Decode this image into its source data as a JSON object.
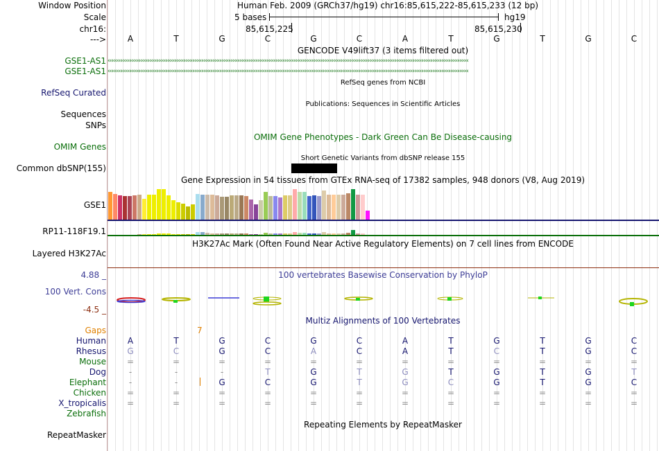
{
  "header": {
    "window_position_label": "Window Position",
    "window_position_value": "Human Feb. 2009 (GRCh37/hg19)   chr16:85,615,222-85,615,233 (12 bp)",
    "scale_label": "Scale",
    "scale_text": "5 bases",
    "scale_assembly": "hg19",
    "chrom_label": "chr16:",
    "pos1": "85,615,225",
    "pos2": "85,615,230",
    "strand_label": "--->"
  },
  "bases": [
    "A",
    "T",
    "G",
    "C",
    "G",
    "C",
    "A",
    "T",
    "G",
    "T",
    "G",
    "C"
  ],
  "tracks": {
    "gencode_title": "GENCODE V49lift37 (3 items filtered out)",
    "gencode_items": [
      "GSE1-AS1",
      "GSE1-AS1"
    ],
    "refseq_label": "RefSeq Curated",
    "refseq_title": "RefSeq genes from NCBI",
    "pubs_label": "Sequences",
    "pubs_title": "Publications: Sequences in Scientific Articles",
    "snps_label": "SNPs",
    "omim_label": "OMIM Genes",
    "omim_title": "OMIM Gene Phenotypes - Dark Green Can Be Disease-causing",
    "dbsnp_label": "Common dbSNP(155)",
    "dbsnp_title": "Short Genetic Variants from dbSNP release 155",
    "gtex_title": "Gene Expression in 54 tissues from GTEx RNA-seq of 17382 samples, 948 donors (V8, Aug 2019)",
    "gtex_gene1": "GSE1",
    "gtex_gene2": "RP11-118F19.1",
    "h3k27_label": "Layered H3K27Ac",
    "h3k27_title": "H3K27Ac Mark (Often Found Near Active Regulatory Elements) on 7 cell lines from ENCODE",
    "cons_label": "100 Vert. Cons",
    "cons_max": "4.88 _",
    "cons_min": "-4.5 _",
    "cons_title": "100 vertebrates Basewise Conservation by PhyloP",
    "multiz_title": "Multiz Alignments of 100 Vertebrates",
    "gaps_label": "Gaps",
    "gaps_value": "7",
    "repeat_label": "RepeatMasker",
    "repeat_title": "Repeating Elements by RepeatMasker"
  },
  "gtex_gse1_values": [
    0.83,
    0.78,
    0.72,
    0.7,
    0.7,
    0.72,
    0.76,
    0.62,
    0.74,
    0.74,
    0.92,
    0.92,
    0.72,
    0.58,
    0.52,
    0.48,
    0.4,
    0.45,
    0.78,
    0.76,
    0.76,
    0.76,
    0.72,
    0.68,
    0.68,
    0.72,
    0.72,
    0.72,
    0.7,
    0.6,
    0.45,
    0.58,
    0.84,
    0.7,
    0.7,
    0.66,
    0.72,
    0.72,
    0.92,
    0.84,
    0.84,
    0.7,
    0.72,
    0.7,
    0.88,
    0.74,
    0.74,
    0.74,
    0.74,
    0.8,
    0.92,
    0.76,
    0.76,
    0.28
  ],
  "gtex_rp11_values": [
    0.05,
    0.05,
    0.05,
    0.05,
    0.05,
    0.05,
    0.1,
    0.1,
    0.15,
    0.15,
    0.25,
    0.3,
    0.2,
    0.1,
    0.1,
    0.1,
    0.1,
    0.1,
    0.45,
    0.45,
    0.35,
    0.2,
    0.2,
    0.2,
    0.25,
    0.25,
    0.3,
    0.3,
    0.2,
    0.15,
    0.1,
    0.1,
    0.35,
    0.2,
    0.2,
    0.2,
    0.25,
    0.25,
    0.5,
    0.35,
    0.35,
    0.2,
    0.2,
    0.2,
    0.45,
    0.3,
    0.3,
    0.3,
    0.3,
    0.4,
    0.9,
    0.3,
    0.3,
    0.05
  ],
  "gtex_colors": [
    "#ff9933",
    "#ff8866",
    "#cc3366",
    "#aa3333",
    "#aa4455",
    "#cc7766",
    "#ccaa88",
    "#ffee33",
    "#eeee00",
    "#eeee00",
    "#eeee00",
    "#eeee00",
    "#eeee00",
    "#eeee00",
    "#dddd00",
    "#cccc00",
    "#bbbb00",
    "#cccc00",
    "#aaddee",
    "#88aacc",
    "#ccbbaa",
    "#ddbb99",
    "#ccaa99",
    "#aa9977",
    "#998866",
    "#bbaa77",
    "#bbaa88",
    "#997755",
    "#cc8866",
    "#aa66aa",
    "#884499",
    "#ccccaa",
    "#99cc55",
    "#bbbb99",
    "#8888ee",
    "#aa77cc",
    "#ddcc66",
    "#ddcc88",
    "#ffaaaa",
    "#bbddaa",
    "#99ddbb",
    "#4466cc",
    "#3355bb",
    "#9999cc",
    "#ddccaa",
    "#ddbb99",
    "#ffcc99",
    "#ddccaa",
    "#ccaa99",
    "#bb8866",
    "#119944",
    "#cc9999",
    "#ffcccc",
    "#ff11ff"
  ],
  "alignments": [
    {
      "species": "Human",
      "color": "#14146e",
      "bases": [
        "A",
        "T",
        "G",
        "C",
        "G",
        "C",
        "A",
        "T",
        "G",
        "T",
        "G",
        "C"
      ]
    },
    {
      "species": "Rhesus",
      "color": "#14146e",
      "bases": [
        "G",
        "C",
        "G",
        "C",
        "A",
        "C",
        "A",
        "T",
        "C",
        "T",
        "G",
        "C"
      ]
    },
    {
      "species": "Mouse",
      "color": "#0a6e0a",
      "bases": [
        "=",
        "=",
        "=",
        "=",
        "=",
        "=",
        "=",
        "=",
        "=",
        "=",
        "=",
        "="
      ]
    },
    {
      "species": "Dog",
      "color": "#14146e",
      "bases": [
        "-",
        "-",
        "-",
        "T",
        "G",
        "T",
        "G",
        "T",
        "G",
        "T",
        "G",
        "T"
      ]
    },
    {
      "species": "Elephant",
      "color": "#0a6e0a",
      "bases": [
        "-",
        "-",
        "G",
        "C",
        "G",
        "T",
        "G",
        "C",
        "G",
        "T",
        "G",
        "C"
      ]
    },
    {
      "species": "Chicken",
      "color": "#0a6e0a",
      "bases": [
        "=",
        "=",
        "=",
        "=",
        "=",
        "=",
        "=",
        "=",
        "=",
        "=",
        "=",
        "="
      ]
    },
    {
      "species": "X_tropicalis",
      "color": "#14146e",
      "bases": [
        "=",
        "=",
        "=",
        "=",
        "=",
        "=",
        "=",
        "=",
        "=",
        "=",
        "=",
        "="
      ]
    },
    {
      "species": "Zebrafish",
      "color": "#0a6e0a",
      "bases": [
        "",
        "",
        "",
        "",
        "",
        "",
        "",
        "",
        "",
        "",
        "",
        ""
      ]
    }
  ],
  "colors": {
    "gene_green": "#0a6e0a",
    "navy": "#14146e",
    "cons_blue": "#3c3c96",
    "gaps_orange": "#e08000",
    "cons_min_brown": "#8b2c0e"
  }
}
